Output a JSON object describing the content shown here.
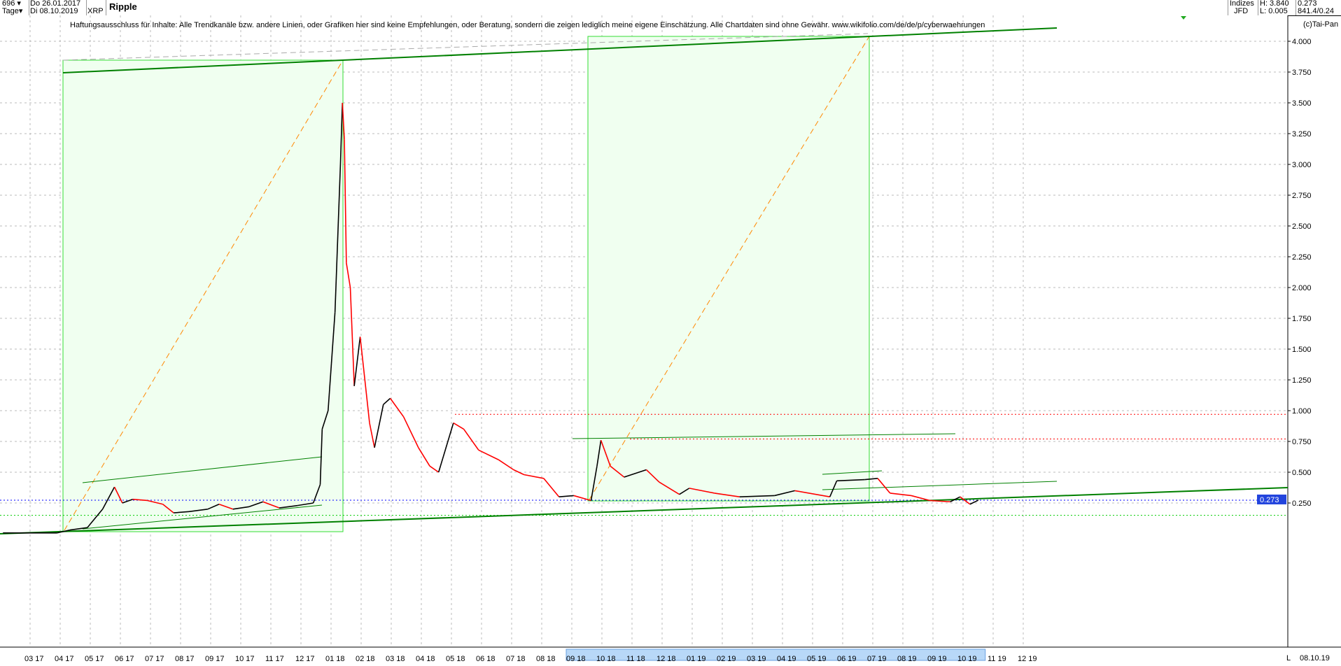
{
  "header": {
    "bars": "696",
    "period": "Tage",
    "date_from": "Do 26.01.2017",
    "date_to": "Di 08.10.2019",
    "symbol": "XRP",
    "title": "Ripple",
    "group": "Indizes",
    "source": "JFD",
    "high": "H: 3.840",
    "low": "L: 0.005",
    "last": "0.273",
    "extra": "841.4/0.24"
  },
  "disclaimer": "Haftungsausschluss für Inhalte: Alle Trendkanäle bzw. andere Linien, oder Grafiken hier sind keine Empfehlungen, oder Beratung, sondern die zeigen lediglich meine eigene Einschätzung. Alle Chartdaten sind ohne Gewähr.  www.wikifolio.com/de/de/p/cyberwaehrungen",
  "copyright": "(c)Tai-Pan",
  "footer": {
    "scale_mode": "L",
    "end_date": "08.10.19"
  },
  "colors": {
    "up": "#000000",
    "down": "#ff0000",
    "channel": "#008000",
    "box_fill": "#f0fff0",
    "box_stroke": "#33dd33",
    "projection": "#ff8800",
    "last_line": "#0000ff",
    "resistance": "#ff0000",
    "support": "#00cc00"
  },
  "chart_data": {
    "type": "line",
    "title": "Ripple",
    "ylim": [
      0,
      4.1
    ],
    "yticks": [
      "0.250",
      "0.500",
      "0.750",
      "1.000",
      "1.250",
      "1.500",
      "1.750",
      "2.000",
      "2.250",
      "2.500",
      "2.750",
      "3.000",
      "3.250",
      "3.500",
      "3.750",
      "4.000"
    ],
    "xticks": [
      "03 17",
      "04 17",
      "05 17",
      "06 17",
      "07 17",
      "08 17",
      "09 17",
      "10 17",
      "11 17",
      "12 17",
      "01 18",
      "02 18",
      "03 18",
      "04 18",
      "05 18",
      "06 18",
      "07 18",
      "08 18",
      "09 18",
      "10 18",
      "11 18",
      "12 18",
      "01 19",
      "02 19",
      "03 19",
      "04 19",
      "05 19",
      "06 19",
      "07 19",
      "08 19",
      "09 19",
      "10 19",
      "11 19",
      "12 19"
    ],
    "last_value_label": "0.273",
    "horizontal_levels": [
      {
        "value": 0.97,
        "style": "red-dotted"
      },
      {
        "value": 0.77,
        "style": "red-dotted"
      },
      {
        "value": 0.273,
        "style": "blue-dotted"
      },
      {
        "value": 0.15,
        "style": "green-dotted"
      }
    ],
    "grid": true,
    "series": [
      {
        "points": [
          [
            "2017-01-26",
            0.007
          ],
          [
            "2017-03-20",
            0.007
          ],
          [
            "2017-04-02",
            0.03
          ],
          [
            "2017-04-20",
            0.05
          ],
          [
            "2017-05-05",
            0.2
          ],
          [
            "2017-05-17",
            0.38
          ],
          [
            "2017-05-25",
            0.25
          ],
          [
            "2017-06-05",
            0.28
          ],
          [
            "2017-06-20",
            0.27
          ],
          [
            "2017-07-05",
            0.24
          ],
          [
            "2017-07-16",
            0.17
          ],
          [
            "2017-08-01",
            0.18
          ],
          [
            "2017-08-20",
            0.2
          ],
          [
            "2017-09-01",
            0.24
          ],
          [
            "2017-09-15",
            0.2
          ],
          [
            "2017-10-01",
            0.22
          ],
          [
            "2017-10-15",
            0.26
          ],
          [
            "2017-11-01",
            0.21
          ],
          [
            "2017-11-20",
            0.23
          ],
          [
            "2017-12-05",
            0.25
          ],
          [
            "2017-12-12",
            0.4
          ],
          [
            "2017-12-14",
            0.85
          ],
          [
            "2017-12-20",
            1.0
          ],
          [
            "2017-12-27",
            1.8
          ],
          [
            "2018-01-02",
            3.0
          ],
          [
            "2018-01-04",
            3.5
          ],
          [
            "2018-01-06",
            3.2
          ],
          [
            "2018-01-08",
            2.2
          ],
          [
            "2018-01-12",
            2.0
          ],
          [
            "2018-01-16",
            1.2
          ],
          [
            "2018-01-22",
            1.6
          ],
          [
            "2018-02-01",
            0.9
          ],
          [
            "2018-02-06",
            0.7
          ],
          [
            "2018-02-15",
            1.05
          ],
          [
            "2018-02-22",
            1.1
          ],
          [
            "2018-03-05",
            0.95
          ],
          [
            "2018-03-20",
            0.7
          ],
          [
            "2018-04-01",
            0.55
          ],
          [
            "2018-04-10",
            0.5
          ],
          [
            "2018-04-25",
            0.9
          ],
          [
            "2018-05-05",
            0.85
          ],
          [
            "2018-05-20",
            0.68
          ],
          [
            "2018-06-10",
            0.6
          ],
          [
            "2018-06-25",
            0.52
          ],
          [
            "2018-07-05",
            0.48
          ],
          [
            "2018-07-25",
            0.45
          ],
          [
            "2018-08-10",
            0.3
          ],
          [
            "2018-08-25",
            0.31
          ],
          [
            "2018-09-12",
            0.27
          ],
          [
            "2018-09-18",
            0.55
          ],
          [
            "2018-09-22",
            0.76
          ],
          [
            "2018-10-01",
            0.55
          ],
          [
            "2018-10-15",
            0.46
          ],
          [
            "2018-11-07",
            0.52
          ],
          [
            "2018-11-20",
            0.42
          ],
          [
            "2018-12-10",
            0.32
          ],
          [
            "2018-12-20",
            0.37
          ],
          [
            "2019-01-15",
            0.33
          ],
          [
            "2019-02-10",
            0.3
          ],
          [
            "2019-03-15",
            0.31
          ],
          [
            "2019-04-05",
            0.35
          ],
          [
            "2019-05-10",
            0.3
          ],
          [
            "2019-05-17",
            0.43
          ],
          [
            "2019-06-15",
            0.44
          ],
          [
            "2019-06-28",
            0.45
          ],
          [
            "2019-07-10",
            0.33
          ],
          [
            "2019-08-01",
            0.31
          ],
          [
            "2019-08-20",
            0.27
          ],
          [
            "2019-09-10",
            0.26
          ],
          [
            "2019-09-20",
            0.3
          ],
          [
            "2019-09-30",
            0.24
          ],
          [
            "2019-10-08",
            0.273
          ]
        ]
      }
    ]
  }
}
